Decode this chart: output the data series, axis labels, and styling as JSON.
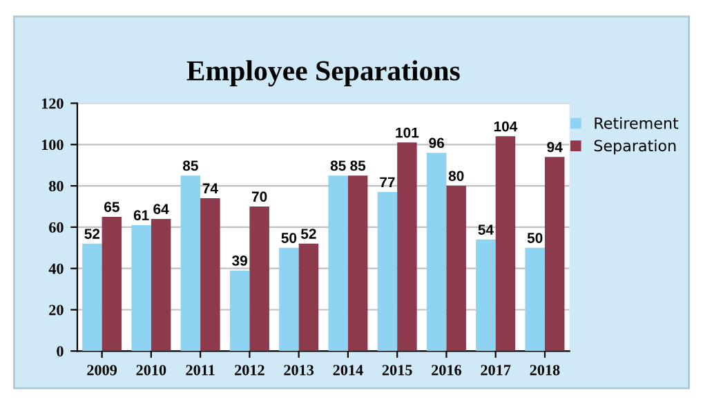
{
  "chart_data": {
    "type": "bar",
    "title": "Employee Separations",
    "categories": [
      "2009",
      "2010",
      "2011",
      "2012",
      "2013",
      "2014",
      "2015",
      "2016",
      "2017",
      "2018"
    ],
    "series": [
      {
        "name": "Retirement",
        "color": "#8ed4f2",
        "values": [
          52,
          61,
          85,
          39,
          50,
          85,
          77,
          96,
          54,
          50
        ]
      },
      {
        "name": "Separation",
        "color": "#8c3a4c",
        "values": [
          65,
          64,
          74,
          70,
          52,
          85,
          101,
          80,
          104,
          94
        ]
      }
    ],
    "ylim": [
      0,
      120
    ],
    "yticks": [
      0,
      20,
      40,
      60,
      80,
      100,
      120
    ],
    "grid": "y",
    "legend": "top right",
    "data_labels": true
  }
}
